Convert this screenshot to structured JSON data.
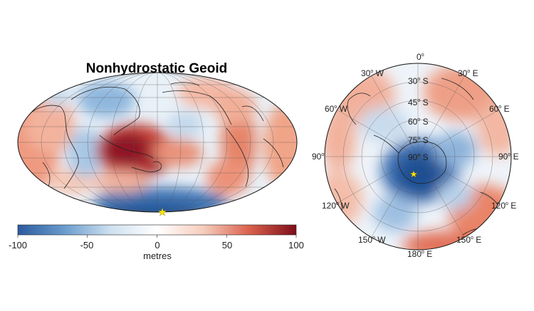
{
  "title": "Nonhydrostatic Geoid",
  "colorbar": {
    "ticks": [
      "-100",
      "-50",
      "0",
      "50",
      "100"
    ],
    "label": "metres",
    "colors": [
      "#2b5a9e",
      "#6a9ccd",
      "#cfe0f0",
      "#ffffff",
      "#f6cdbd",
      "#d9604c",
      "#7e0d1a"
    ]
  },
  "marker": {
    "symbol": "★",
    "color": "#ffe600"
  },
  "polar": {
    "meridian_labels": [
      {
        "deg": "0",
        "dir": ""
      },
      {
        "deg": "30",
        "dir": "E"
      },
      {
        "deg": "60",
        "dir": "E"
      },
      {
        "deg": "90",
        "dir": "E"
      },
      {
        "deg": "120",
        "dir": "E"
      },
      {
        "deg": "150",
        "dir": "E"
      },
      {
        "deg": "180",
        "dir": "E"
      },
      {
        "deg": "150",
        "dir": "W"
      },
      {
        "deg": "120",
        "dir": "W"
      },
      {
        "deg": "90",
        "dir": ""
      },
      {
        "deg": "60",
        "dir": "W"
      },
      {
        "deg": "30",
        "dir": "W"
      }
    ],
    "parallel_labels": [
      {
        "deg": "30",
        "dir": "S"
      },
      {
        "deg": "45",
        "dir": "S"
      },
      {
        "deg": "60",
        "dir": "S"
      },
      {
        "deg": "75",
        "dir": "S"
      },
      {
        "deg": "90",
        "dir": "S"
      }
    ]
  }
}
